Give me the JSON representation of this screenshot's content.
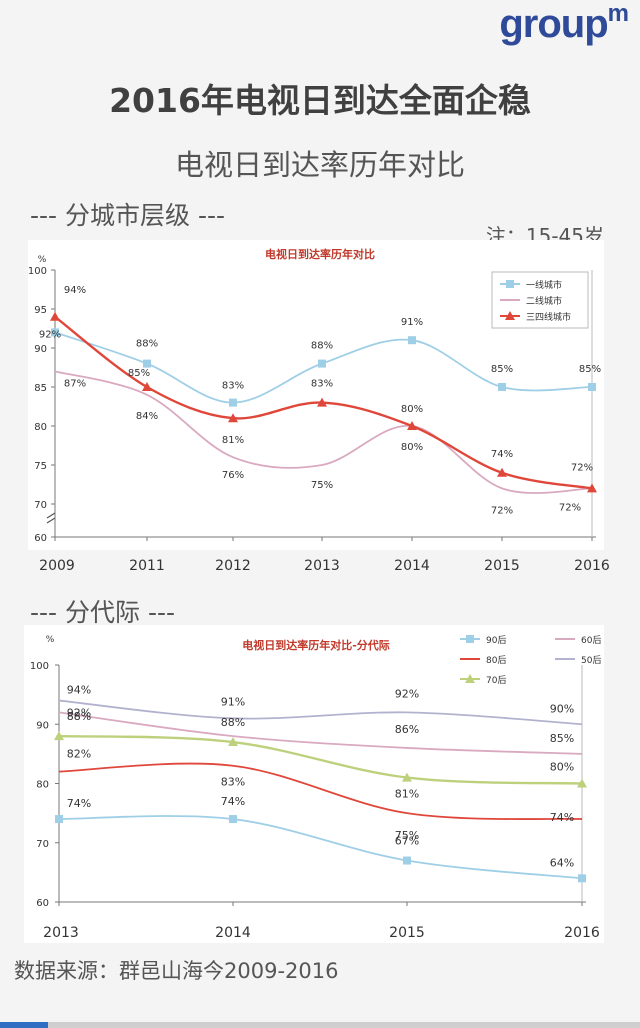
{
  "logo": {
    "text": "group",
    "sup": "m"
  },
  "title": "2016年电视日到达全面企稳",
  "subtitle": "电视日到达率历年对比",
  "section1": "---  分城市层级  ---",
  "note": "注：15-45岁",
  "section2": "---  分代际  ---",
  "source": "数据来源：群邑山海今2009-2016",
  "colors": {
    "series1": "#9fcfe6",
    "series2": "#d9a9c0",
    "series3": "#e0473b",
    "series4": "#b2b2cf",
    "series5": "#bdd17d"
  },
  "chart_data": [
    {
      "type": "line",
      "title": "电视日到达率历年对比",
      "ylabel": "%",
      "yticks": [
        "60",
        "70",
        "75",
        "80",
        "85",
        "90",
        "95",
        "100"
      ],
      "categories": [
        "2009",
        "2011",
        "2012",
        "2013",
        "2014",
        "2015",
        "2016"
      ],
      "ylim": [
        60,
        100
      ],
      "series": [
        {
          "name": "一线城市",
          "values": [
            92,
            88,
            83,
            88,
            91,
            85,
            85
          ],
          "labels": [
            "92%",
            "88%",
            "83%",
            "88%",
            "91%",
            "85%",
            "85%"
          ]
        },
        {
          "name": "二线城市",
          "values": [
            87,
            84,
            76,
            75,
            80,
            72,
            72
          ],
          "labels": [
            "87%",
            "84%",
            "76%",
            "75%",
            "80%",
            "72%",
            "72%"
          ]
        },
        {
          "name": "三四线城市",
          "values": [
            94,
            85,
            81,
            83,
            80,
            74,
            72
          ],
          "labels": [
            "94%",
            "85%",
            "81%",
            "83%",
            "80%",
            "74%",
            "72%"
          ]
        }
      ]
    },
    {
      "type": "line",
      "title": "电视日到达率历年对比-分代际",
      "ylabel": "%",
      "yticks": [
        "60",
        "70",
        "80",
        "90",
        "100"
      ],
      "categories": [
        "2013",
        "2014",
        "2015",
        "2016"
      ],
      "ylim": [
        60,
        100
      ],
      "series": [
        {
          "name": "90后",
          "values": [
            74,
            74,
            67,
            64
          ],
          "labels": [
            "74%",
            "74%",
            "67%",
            "64%"
          ]
        },
        {
          "name": "60后",
          "values": [
            92,
            88,
            86,
            85
          ],
          "labels": [
            "92%",
            "88%",
            "86%",
            "85%"
          ]
        },
        {
          "name": "80后",
          "values": [
            82,
            83,
            75,
            74
          ],
          "labels": [
            "82%",
            "83%",
            "75%",
            "74%"
          ]
        },
        {
          "name": "50后",
          "values": [
            94,
            91,
            92,
            90
          ],
          "labels": [
            "94%",
            "91%",
            "92%",
            "90%"
          ]
        },
        {
          "name": "70后",
          "values": [
            88,
            87,
            81,
            80
          ],
          "labels": [
            "88%",
            "",
            "81%",
            "80%"
          ]
        }
      ]
    }
  ]
}
